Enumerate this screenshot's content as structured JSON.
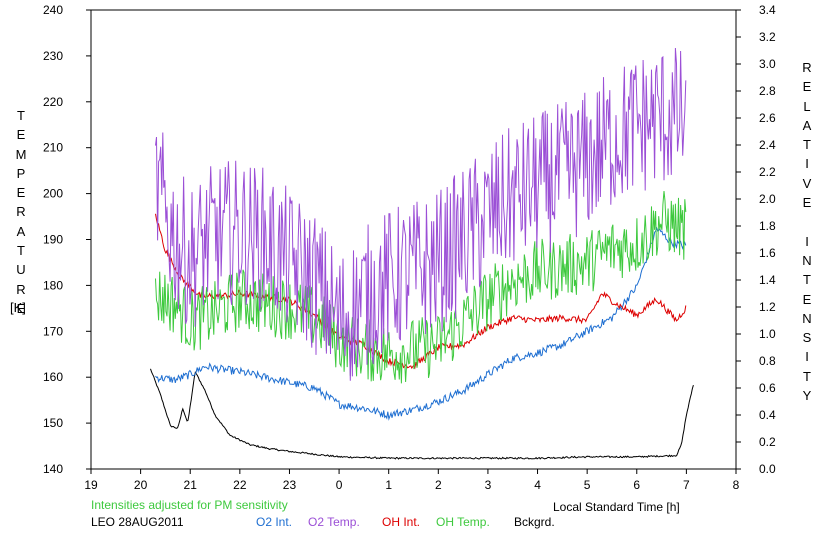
{
  "chart_data": {
    "type": "line",
    "xlabel": "Local Standard Time [h]",
    "ylabel_left": "TEMPERATURE",
    "ylabel_left_unit": "[K]",
    "ylabel_right": "RELATIVE INTENSITY",
    "xlim": [
      19,
      8
    ],
    "x_ticks": [
      "19",
      "20",
      "21",
      "22",
      "23",
      "0",
      "1",
      "2",
      "3",
      "4",
      "5",
      "6",
      "7",
      "8"
    ],
    "ylim_left": [
      140,
      240
    ],
    "y_ticks_left": [
      "140",
      "150",
      "160",
      "170",
      "180",
      "190",
      "200",
      "210",
      "220",
      "230",
      "240"
    ],
    "ylim_right": [
      0.0,
      3.4
    ],
    "y_ticks_right": [
      "0.0",
      "0.2",
      "0.4",
      "0.6",
      "0.8",
      "1.0",
      "1.2",
      "1.4",
      "1.6",
      "1.8",
      "2.0",
      "2.2",
      "2.4",
      "2.6",
      "2.8",
      "3.0",
      "3.2",
      "3.4"
    ],
    "grid": false,
    "note": "Intensities adjusted for PM sensitivity",
    "station_date": "LEO 28AUG2011",
    "series": [
      {
        "name": "O2 Int.",
        "axis": "right",
        "color": "#1f6fd1",
        "noise": 0.03,
        "points": [
          [
            20.3,
            0.68
          ],
          [
            20.7,
            0.66
          ],
          [
            21.0,
            0.7
          ],
          [
            21.3,
            0.76
          ],
          [
            21.6,
            0.74
          ],
          [
            22.0,
            0.72
          ],
          [
            22.5,
            0.68
          ],
          [
            23.0,
            0.64
          ],
          [
            23.5,
            0.6
          ],
          [
            0.0,
            0.48
          ],
          [
            0.5,
            0.45
          ],
          [
            1.0,
            0.4
          ],
          [
            1.5,
            0.44
          ],
          [
            2.0,
            0.5
          ],
          [
            2.5,
            0.58
          ],
          [
            3.0,
            0.7
          ],
          [
            3.5,
            0.82
          ],
          [
            4.0,
            0.86
          ],
          [
            4.5,
            0.92
          ],
          [
            5.0,
            1.02
          ],
          [
            5.5,
            1.12
          ],
          [
            6.0,
            1.35
          ],
          [
            6.4,
            1.78
          ],
          [
            6.7,
            1.68
          ],
          [
            7.0,
            1.65
          ]
        ]
      },
      {
        "name": "O2 Temp.",
        "axis": "left",
        "color": "#9b4fd6",
        "noise": 16,
        "points": [
          [
            20.3,
            202
          ],
          [
            20.7,
            190
          ],
          [
            21.0,
            186
          ],
          [
            21.5,
            191
          ],
          [
            22.0,
            192
          ],
          [
            22.5,
            190
          ],
          [
            23.0,
            185
          ],
          [
            23.5,
            181
          ],
          [
            0.0,
            172
          ],
          [
            0.5,
            177
          ],
          [
            1.0,
            181
          ],
          [
            1.5,
            183
          ],
          [
            2.0,
            185
          ],
          [
            2.5,
            190
          ],
          [
            3.0,
            195
          ],
          [
            3.5,
            199
          ],
          [
            4.0,
            202
          ],
          [
            4.5,
            204
          ],
          [
            5.0,
            207
          ],
          [
            5.5,
            212
          ],
          [
            6.0,
            215
          ],
          [
            6.5,
            217
          ],
          [
            7.0,
            216
          ]
        ]
      },
      {
        "name": "OH Int.",
        "axis": "right",
        "color": "#dd0000",
        "noise": 0.025,
        "points": [
          [
            20.3,
            1.88
          ],
          [
            20.5,
            1.62
          ],
          [
            20.8,
            1.42
          ],
          [
            21.2,
            1.28
          ],
          [
            21.6,
            1.28
          ],
          [
            22.0,
            1.3
          ],
          [
            22.5,
            1.28
          ],
          [
            23.0,
            1.25
          ],
          [
            23.5,
            1.14
          ],
          [
            0.0,
            0.98
          ],
          [
            0.5,
            0.92
          ],
          [
            1.0,
            0.8
          ],
          [
            1.5,
            0.76
          ],
          [
            2.0,
            0.9
          ],
          [
            2.5,
            0.92
          ],
          [
            3.0,
            1.05
          ],
          [
            3.5,
            1.12
          ],
          [
            4.0,
            1.1
          ],
          [
            4.5,
            1.12
          ],
          [
            5.0,
            1.1
          ],
          [
            5.3,
            1.3
          ],
          [
            5.6,
            1.22
          ],
          [
            6.0,
            1.14
          ],
          [
            6.4,
            1.26
          ],
          [
            6.8,
            1.1
          ],
          [
            7.0,
            1.2
          ]
        ]
      },
      {
        "name": "OH Temp.",
        "axis": "left",
        "color": "#3ec93e",
        "noise": 7,
        "points": [
          [
            20.3,
            178
          ],
          [
            20.7,
            176
          ],
          [
            21.0,
            172
          ],
          [
            21.5,
            174
          ],
          [
            22.0,
            177
          ],
          [
            22.5,
            176
          ],
          [
            23.0,
            175
          ],
          [
            23.5,
            173
          ],
          [
            0.0,
            168
          ],
          [
            0.5,
            166
          ],
          [
            1.0,
            165
          ],
          [
            1.5,
            166
          ],
          [
            2.0,
            167
          ],
          [
            2.5,
            172
          ],
          [
            3.0,
            177
          ],
          [
            3.5,
            181
          ],
          [
            4.0,
            183
          ],
          [
            4.5,
            184
          ],
          [
            5.0,
            185
          ],
          [
            5.5,
            188
          ],
          [
            6.0,
            189
          ],
          [
            6.5,
            194
          ],
          [
            7.0,
            192
          ]
        ]
      },
      {
        "name": "Bckgrd.",
        "axis": "right",
        "color": "#000000",
        "noise": 0.006,
        "points": [
          [
            20.2,
            0.74
          ],
          [
            20.4,
            0.55
          ],
          [
            20.6,
            0.32
          ],
          [
            20.75,
            0.3
          ],
          [
            20.85,
            0.45
          ],
          [
            20.95,
            0.34
          ],
          [
            21.1,
            0.72
          ],
          [
            21.3,
            0.58
          ],
          [
            21.5,
            0.4
          ],
          [
            21.8,
            0.25
          ],
          [
            22.2,
            0.18
          ],
          [
            22.6,
            0.15
          ],
          [
            23.0,
            0.13
          ],
          [
            23.5,
            0.11
          ],
          [
            0.0,
            0.09
          ],
          [
            1.0,
            0.08
          ],
          [
            2.0,
            0.08
          ],
          [
            3.0,
            0.08
          ],
          [
            4.0,
            0.08
          ],
          [
            5.0,
            0.09
          ],
          [
            6.0,
            0.09
          ],
          [
            6.8,
            0.1
          ],
          [
            6.9,
            0.18
          ],
          [
            7.0,
            0.4
          ],
          [
            7.15,
            0.64
          ]
        ]
      }
    ]
  }
}
